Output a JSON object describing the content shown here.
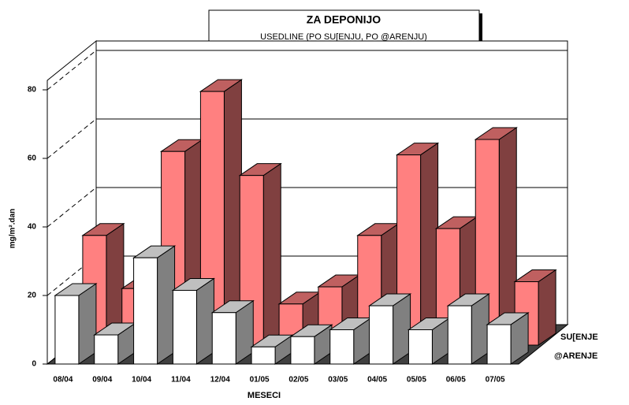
{
  "chart_data": {
    "type": "bar3d",
    "title": "ZA DEPONIJO",
    "subtitle": "USEDLINE (PO SU[ENJU, PO @ARENJU)",
    "y_label": "mg/m².dan",
    "x_label": "MESECI",
    "categories": [
      "08/04",
      "09/04",
      "10/04",
      "11/04",
      "12/04",
      "01/05",
      "02/05",
      "03/05",
      "04/05",
      "05/05",
      "06/05",
      "07/05"
    ],
    "series": [
      {
        "name": "SU[ENJE",
        "color": "#ff8080",
        "values": [
          32,
          16.5,
          56.5,
          74,
          49.5,
          12,
          17,
          32,
          55.5,
          34,
          60,
          18.5
        ]
      },
      {
        "name": "@ARENJE",
        "color": "#ffffff",
        "values": [
          20,
          8.5,
          31,
          21.5,
          15,
          5,
          8,
          10,
          17,
          10,
          17,
          11.5
        ]
      }
    ],
    "ylim": [
      0,
      80
    ],
    "yticks": [
      0,
      20,
      40,
      60,
      80
    ],
    "grid": true
  }
}
